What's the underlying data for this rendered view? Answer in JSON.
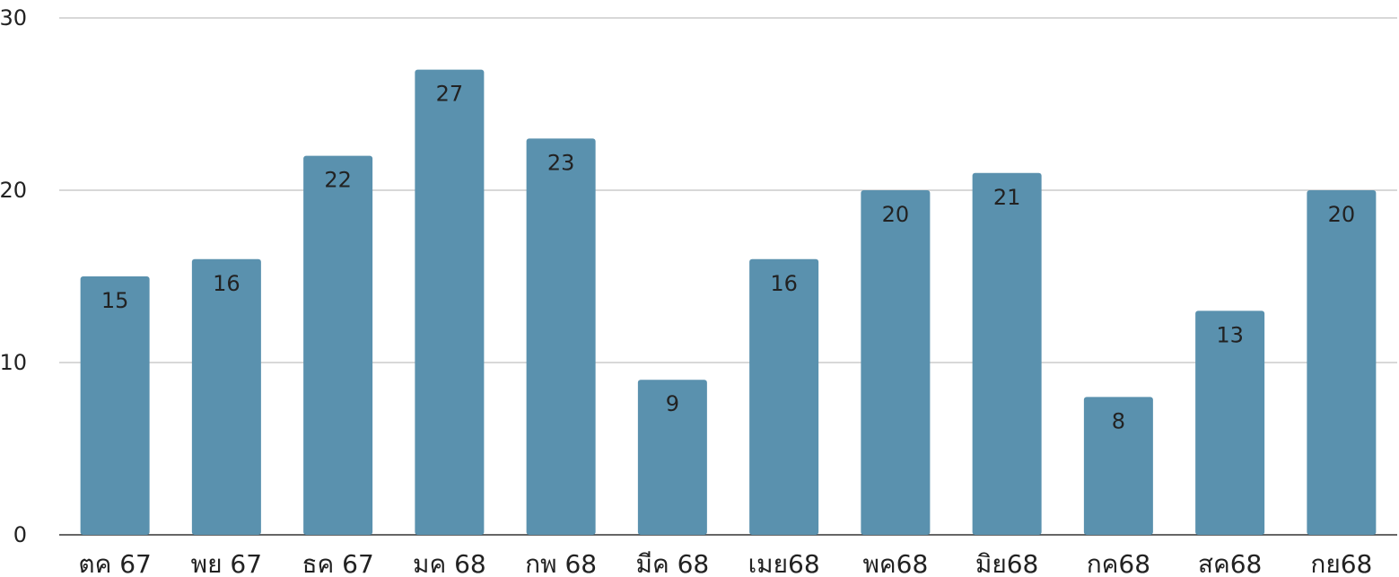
{
  "chart_data": {
    "type": "bar",
    "title": "",
    "xlabel": "",
    "ylabel": "",
    "categories": [
      "ตค 67",
      "พย 67",
      "ธค 67",
      "มค 68",
      "กพ 68",
      "มีค 68",
      "เมย68",
      "พค68",
      "มิย68",
      "กค68",
      "สค68",
      "กย68"
    ],
    "values": [
      15,
      16,
      22,
      27,
      23,
      9,
      16,
      20,
      21,
      8,
      13,
      20
    ],
    "ylim": [
      0,
      30
    ],
    "yticks": [
      0,
      10,
      20,
      30
    ],
    "grid": true,
    "legend": "none",
    "data_labels": true,
    "colors": {
      "bar": "#5a91ae",
      "grid": "#cccccc",
      "text": "#222222"
    }
  }
}
